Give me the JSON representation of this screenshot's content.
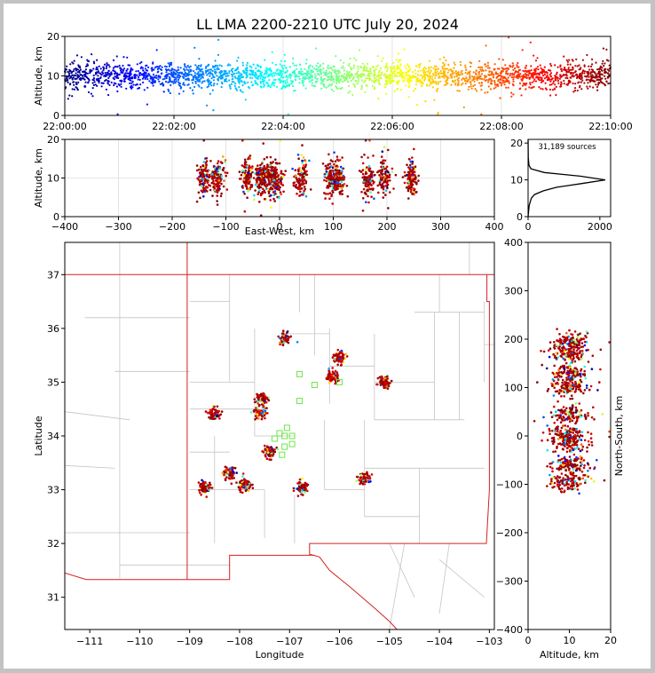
{
  "chart_data": {
    "type": "scatter",
    "title": "LL LMA 2200-2210 UTC July 20, 2024",
    "colormap": "jet (color encodes time)",
    "panels": {
      "time_height": {
        "ylabel": "Altitude, km",
        "xlim": [
          "22:00:00",
          "22:10:00"
        ],
        "ylim": [
          0,
          20
        ],
        "xticks": [
          "22:00:00",
          "22:02:00",
          "22:04:00",
          "22:06:00",
          "22:08:00",
          "22:10:00"
        ],
        "yticks": [
          "0",
          "10",
          "20"
        ],
        "typical_altitude_km": 10,
        "grid": true
      },
      "ew_height": {
        "xlabel": "East-West, km",
        "ylabel": "Altitude, km",
        "xlim": [
          -400,
          400
        ],
        "ylim": [
          0,
          20
        ],
        "xticks": [
          "−400",
          "−300",
          "−200",
          "−100",
          "0",
          "100",
          "200",
          "300",
          "400"
        ],
        "yticks": [
          "0",
          "10",
          "20"
        ],
        "clusters_ew_km": [
          -140,
          -115,
          -60,
          -35,
          -20,
          -5,
          40,
          95,
          110,
          165,
          195,
          245
        ],
        "grid": true
      },
      "altitude_histogram": {
        "annotation": "31,189 sources",
        "xlim": [
          0,
          2300
        ],
        "ylim": [
          0,
          21
        ],
        "xticks": [
          "0",
          "2000"
        ],
        "yticks": [
          "0",
          "10",
          "20"
        ],
        "profile": [
          {
            "alt": 0,
            "count": 0
          },
          {
            "alt": 3,
            "count": 30
          },
          {
            "alt": 5,
            "count": 90
          },
          {
            "alt": 6,
            "count": 180
          },
          {
            "alt": 7,
            "count": 420
          },
          {
            "alt": 8,
            "count": 800
          },
          {
            "alt": 9,
            "count": 1500
          },
          {
            "alt": 10,
            "count": 2150
          },
          {
            "alt": 11,
            "count": 1450
          },
          {
            "alt": 12,
            "count": 450
          },
          {
            "alt": 13,
            "count": 80
          },
          {
            "alt": 14,
            "count": 25
          },
          {
            "alt": 16,
            "count": 5
          },
          {
            "alt": 21,
            "count": 0
          }
        ]
      },
      "plan_view": {
        "xlabel": "Longitude",
        "ylabel": "Latitude",
        "xlim": [
          -111.5,
          -102.9
        ],
        "ylim": [
          30.4,
          37.6
        ],
        "xticks": [
          "−111",
          "−110",
          "−109",
          "−108",
          "−107",
          "−106",
          "−105",
          "−104",
          "−103"
        ],
        "yticks": [
          "31",
          "32",
          "33",
          "34",
          "35",
          "36",
          "37"
        ],
        "storm_clusters": [
          {
            "lon": -108.7,
            "lat": 33.05
          },
          {
            "lon": -108.5,
            "lat": 34.4
          },
          {
            "lon": -108.2,
            "lat": 33.3
          },
          {
            "lon": -107.9,
            "lat": 33.1
          },
          {
            "lon": -107.55,
            "lat": 34.7
          },
          {
            "lon": -107.6,
            "lat": 34.45
          },
          {
            "lon": -107.4,
            "lat": 33.7
          },
          {
            "lon": -107.1,
            "lat": 35.8
          },
          {
            "lon": -106.75,
            "lat": 33.05
          },
          {
            "lon": -106.15,
            "lat": 35.1
          },
          {
            "lon": -106.0,
            "lat": 35.45
          },
          {
            "lon": -105.1,
            "lat": 35.0
          },
          {
            "lon": -105.5,
            "lat": 33.2
          }
        ],
        "stations_lonlat": [
          [
            -107.2,
            34.05
          ],
          [
            -107.05,
            34.15
          ],
          [
            -106.95,
            34.0
          ],
          [
            -107.3,
            33.95
          ],
          [
            -107.1,
            33.8
          ],
          [
            -106.8,
            34.65
          ],
          [
            -106.8,
            35.15
          ],
          [
            -106.5,
            34.95
          ],
          [
            -106.0,
            35.0
          ],
          [
            -107.15,
            33.65
          ],
          [
            -107.1,
            34.0
          ],
          [
            -106.95,
            33.85
          ]
        ]
      },
      "ns_altitude": {
        "xlabel": "Altitude, km",
        "ylabel": "North-South, km",
        "xlim": [
          0,
          20
        ],
        "ylim": [
          -400,
          400
        ],
        "xticks": [
          "0",
          "10",
          "20"
        ],
        "yticks": [
          "−400",
          "−300",
          "−200",
          "−100",
          "0",
          "100",
          "200",
          "300",
          "400"
        ],
        "clusters_ns_km": [
          -95,
          -60,
          -15,
          5,
          45,
          100,
          130,
          170,
          195
        ]
      }
    }
  }
}
